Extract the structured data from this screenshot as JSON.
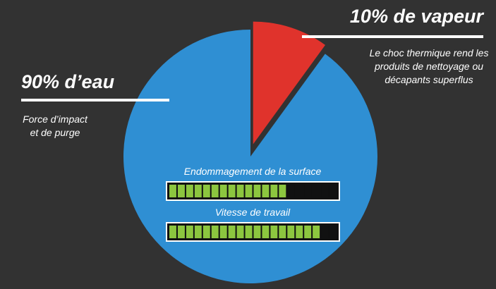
{
  "chart_data": {
    "type": "pie",
    "slices": [
      {
        "label": "90% d’eau",
        "value": 90,
        "description": [
          "Force d’impact",
          "et de purge"
        ],
        "color": "#2f8fd3"
      },
      {
        "label": "10% de vapeur",
        "value": 10,
        "description": [
          "Le choc thermique rend les",
          "produits de nettoyage ou",
          "décapants superflus"
        ],
        "color": "#e0332c"
      }
    ],
    "bars": [
      {
        "label": "Endommagement de la surface",
        "filled": 14,
        "total": 20
      },
      {
        "label": "Vitesse de travail",
        "filled": 18,
        "total": 20
      }
    ],
    "colors": {
      "background": "#323232",
      "bar_fill": "#8cc63f",
      "bar_empty": "#111111",
      "leader": "#ffffff"
    }
  }
}
